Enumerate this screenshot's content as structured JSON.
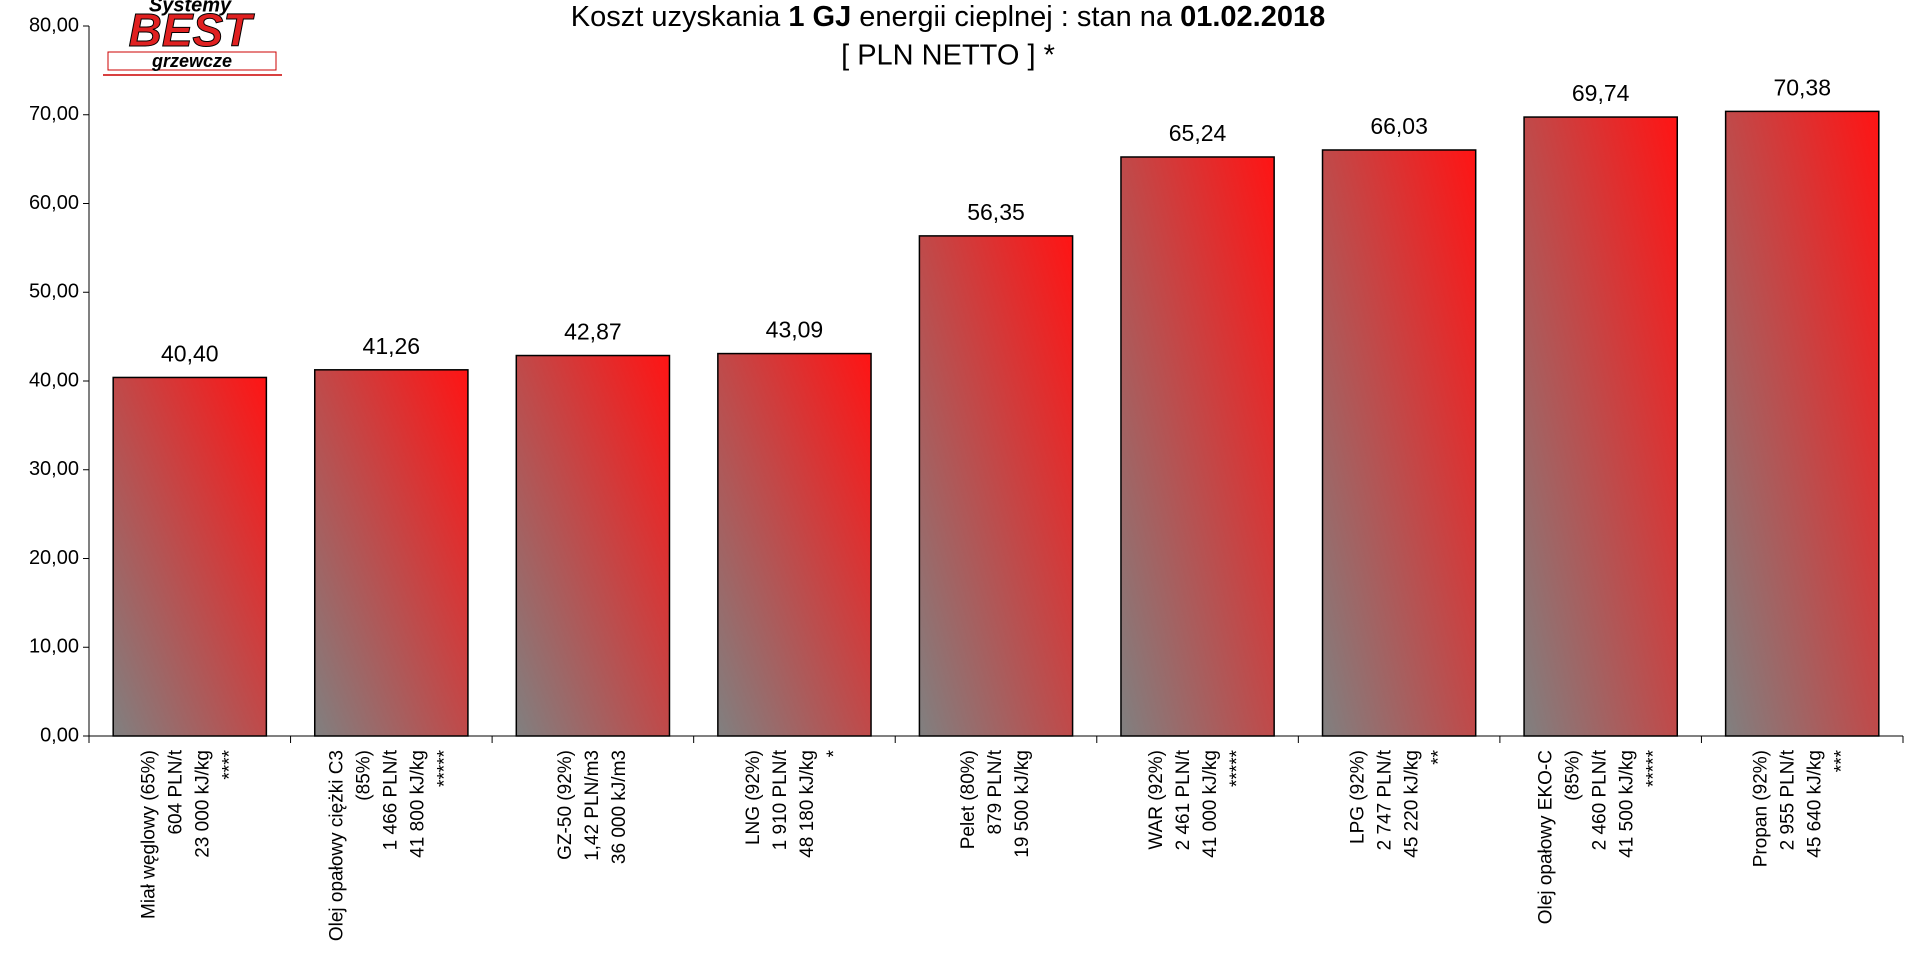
{
  "chart_data": {
    "type": "bar",
    "title": [
      "Koszt uzyskania ",
      "1 GJ",
      " energii cieplnej : stan na ",
      "01.02.2018"
    ],
    "subtitle": "[ PLN NETTO ] *",
    "logo": [
      "Systemy",
      "BEST",
      "grzewcze"
    ],
    "categories": [
      [
        "Miał węglowy (65%)",
        "604 PLN/t",
        "23 000 kJ/kg",
        "****"
      ],
      [
        "Olej opałowy ciężki C3",
        "(85%)",
        "1 466 PLN/t",
        "41 800 kJ/kg",
        "*****"
      ],
      [
        "GZ-50 (92%)",
        "1,42 PLN/m3",
        "36 000 kJ/m3"
      ],
      [
        "LNG (92%)",
        "1 910 PLN/t",
        "48 180 kJ/kg",
        "*"
      ],
      [
        "Pelet (80%)",
        "879 PLN/t",
        "19 500 kJ/kg"
      ],
      [
        "WAR (92%)",
        "2 461 PLN/t",
        "41 000 kJ/kg",
        "*****"
      ],
      [
        "LPG (92%)",
        "2 747 PLN/t",
        "45 220 kJ/kg",
        "**"
      ],
      [
        "Olej opałowy EKO-C",
        "(85%)",
        "2 460 PLN/t",
        "41 500 kJ/kg",
        "*****"
      ],
      [
        "Propan (92%)",
        "2 955 PLN/t",
        "45 640 kJ/kg",
        "***"
      ]
    ],
    "values": [
      40.4,
      41.26,
      42.87,
      43.09,
      56.35,
      65.24,
      66.03,
      69.74,
      70.38
    ],
    "value_labels": [
      "40,40",
      "41,26",
      "42,87",
      "43,09",
      "56,35",
      "65,24",
      "66,03",
      "69,74",
      "70,38"
    ],
    "color": "#ff1414",
    "ylim": [
      0,
      80
    ],
    "yticks": [
      {
        "value": 0,
        "label": "0,00"
      },
      {
        "value": 10,
        "label": "10,00"
      },
      {
        "value": 20,
        "label": "20,00"
      },
      {
        "value": 30,
        "label": "30,00"
      },
      {
        "value": 40,
        "label": "40,00"
      },
      {
        "value": 50,
        "label": "50,00"
      },
      {
        "value": 60,
        "label": "60,00"
      },
      {
        "value": 70,
        "label": "70,00"
      },
      {
        "value": 80,
        "label": "80,00"
      }
    ],
    "grid": false
  }
}
